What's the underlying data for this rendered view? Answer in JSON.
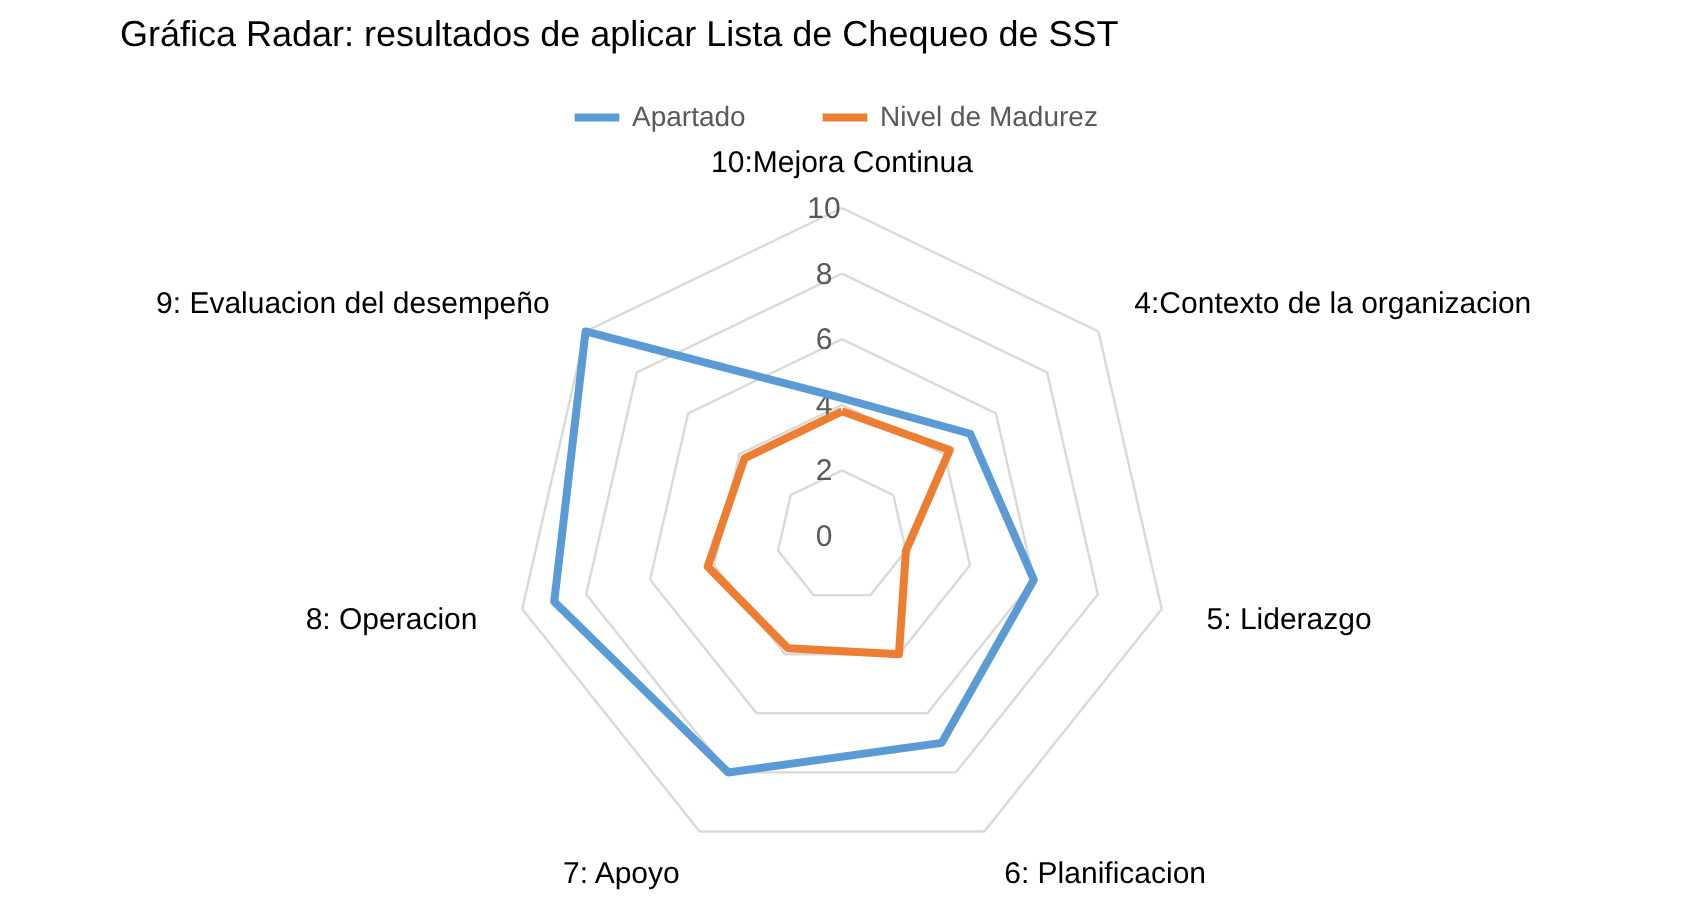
{
  "chart_data": {
    "type": "radar",
    "title": "Gráfica Radar: resultados de aplicar Lista de Chequeo de SST",
    "categories": [
      "10:Mejora Continua",
      "4:Contexto de la organizacion",
      "5: Liderazgo",
      "6: Planificacion",
      "7: Apoyo",
      "8: Operacion",
      "9: Evaluacion del desempeño"
    ],
    "series": [
      {
        "name": "Apartado",
        "color": "#5b9bd5",
        "values": [
          4.2,
          5,
          6,
          7,
          8,
          9,
          10
        ]
      },
      {
        "name": "Nivel de Madurez",
        "color": "#ed7d31",
        "values": [
          3.8,
          4.2,
          2,
          4,
          3.8,
          4.2,
          3.8
        ]
      }
    ],
    "ylim": [
      0,
      10
    ],
    "yticks": [
      0,
      2,
      4,
      6,
      8,
      10
    ],
    "grid": true,
    "legend": "top"
  }
}
